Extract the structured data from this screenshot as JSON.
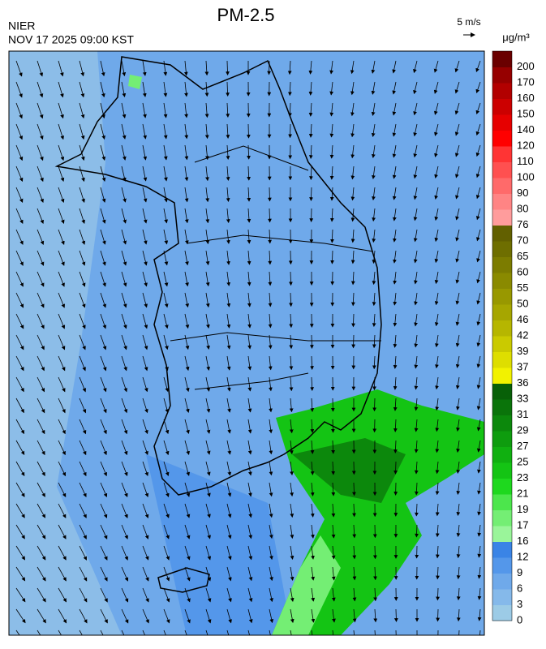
{
  "header": {
    "title": "PM-2.5",
    "agency": "NIER",
    "timestamp": "NOV 17 2025 09:00 KST",
    "wind_scale": "5 m/s"
  },
  "colorbar": {
    "unit": "μg/m³",
    "ticks": [
      0,
      3,
      6,
      9,
      12,
      16,
      17,
      19,
      21,
      23,
      25,
      27,
      29,
      31,
      33,
      36,
      37,
      39,
      42,
      46,
      50,
      55,
      60,
      65,
      70,
      76,
      80,
      90,
      100,
      110,
      120,
      140,
      150,
      160,
      170,
      200
    ],
    "colors": [
      "#9ccbe6",
      "#85b9ea",
      "#6fa9ea",
      "#5497ea",
      "#3a84e6",
      "#9af59a",
      "#74ee74",
      "#4ce64c",
      "#1ed81e",
      "#14c414",
      "#10b010",
      "#0e9c0e",
      "#0c880c",
      "#0a740a",
      "#086008",
      "#f2f200",
      "#dede00",
      "#caca00",
      "#b6b600",
      "#a6a600",
      "#989800",
      "#8a8a00",
      "#7c7c00",
      "#6e6e00",
      "#626000",
      "#ff9c9c",
      "#ff8484",
      "#ff6a6a",
      "#ff5050",
      "#ff3434",
      "#ff0000",
      "#e60000",
      "#cc0000",
      "#b20000",
      "#960000",
      "#6a0000"
    ]
  }
}
